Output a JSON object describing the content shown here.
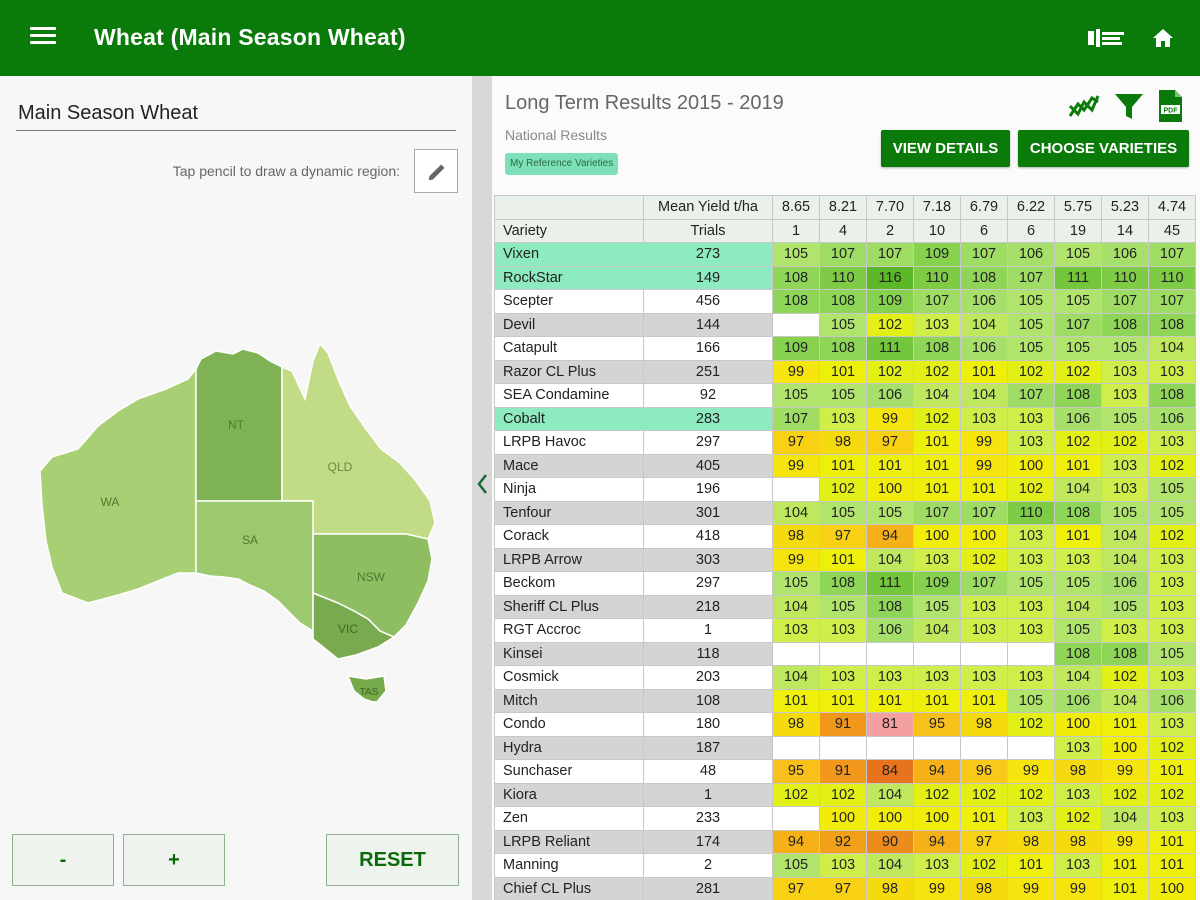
{
  "app_bar": {
    "title": "Wheat (Main Season Wheat)",
    "menu_icon": "menu-icon",
    "logo_icon": "nvt-logo-icon",
    "home_icon": "home-icon"
  },
  "left_panel": {
    "region_name": "Main Season Wheat",
    "hint": "Tap pencil to draw a dynamic region:",
    "pencil_icon": "pencil-icon",
    "map": {
      "states": [
        {
          "label": "WA",
          "color": "#a9cf75"
        },
        {
          "label": "NT",
          "color": "#7fb255"
        },
        {
          "label": "QLD",
          "color": "#c2db86"
        },
        {
          "label": "SA",
          "color": "#9cc86e"
        },
        {
          "label": "NSW",
          "color": "#8fbd61"
        },
        {
          "label": "VIC",
          "color": "#7aaa4f"
        },
        {
          "label": "TAS",
          "color": "#75a94a"
        }
      ]
    },
    "zoom_out_label": "-",
    "zoom_in_label": "+",
    "reset_label": "RESET"
  },
  "right_panel": {
    "title": "Long Term Results 2015 - 2019",
    "subtitle": "National Results",
    "chip": "My Reference Varieties",
    "icons": [
      "trend-chart-icon",
      "filter-icon",
      "pdf-icon"
    ],
    "view_details_label": "VIEW DETAILS",
    "choose_varieties_label": "CHOOSE VARIETIES",
    "table": {
      "header_mean_yield": "Mean Yield t/ha",
      "header_variety": "Variety",
      "header_trials": "Trials",
      "site_yields": [
        "8.65",
        "8.21",
        "7.70",
        "7.18",
        "6.79",
        "6.22",
        "5.75",
        "5.23",
        "4.74"
      ],
      "site_trials": [
        "1",
        "4",
        "2",
        "10",
        "6",
        "6",
        "19",
        "14",
        "45"
      ],
      "rows": [
        {
          "variety": "Vixen",
          "trials": "273",
          "values": [
            "105",
            "107",
            "107",
            "109",
            "107",
            "106",
            "105",
            "106",
            "107"
          ]
        },
        {
          "variety": "RockStar",
          "trials": "149",
          "values": [
            "108",
            "110",
            "116",
            "110",
            "108",
            "107",
            "111",
            "110",
            "110"
          ]
        },
        {
          "variety": "Scepter",
          "trials": "456",
          "values": [
            "108",
            "108",
            "109",
            "107",
            "106",
            "105",
            "105",
            "107",
            "107"
          ]
        },
        {
          "variety": "Devil",
          "trials": "144",
          "values": [
            "",
            "105",
            "102",
            "103",
            "104",
            "105",
            "107",
            "108",
            "108"
          ]
        },
        {
          "variety": "Catapult",
          "trials": "166",
          "values": [
            "109",
            "108",
            "111",
            "108",
            "106",
            "105",
            "105",
            "105",
            "104"
          ]
        },
        {
          "variety": "Razor CL Plus",
          "trials": "251",
          "values": [
            "99",
            "101",
            "102",
            "102",
            "101",
            "102",
            "102",
            "103",
            "103"
          ]
        },
        {
          "variety": "SEA Condamine",
          "trials": "92",
          "values": [
            "105",
            "105",
            "106",
            "104",
            "104",
            "107",
            "108",
            "103",
            "108"
          ]
        },
        {
          "variety": "Cobalt",
          "trials": "283",
          "values": [
            "107",
            "103",
            "99",
            "102",
            "103",
            "103",
            "106",
            "105",
            "106"
          ]
        },
        {
          "variety": "LRPB Havoc",
          "trials": "297",
          "values": [
            "97",
            "98",
            "97",
            "101",
            "99",
            "103",
            "102",
            "102",
            "103"
          ]
        },
        {
          "variety": "Mace",
          "trials": "405",
          "values": [
            "99",
            "101",
            "101",
            "101",
            "99",
            "100",
            "101",
            "103",
            "102"
          ]
        },
        {
          "variety": "Ninja",
          "trials": "196",
          "values": [
            "",
            "102",
            "100",
            "101",
            "101",
            "102",
            "104",
            "103",
            "105"
          ]
        },
        {
          "variety": "Tenfour",
          "trials": "301",
          "values": [
            "104",
            "105",
            "105",
            "107",
            "107",
            "110",
            "108",
            "105",
            "105"
          ]
        },
        {
          "variety": "Corack",
          "trials": "418",
          "values": [
            "98",
            "97",
            "94",
            "100",
            "100",
            "103",
            "101",
            "104",
            "102"
          ]
        },
        {
          "variety": "LRPB Arrow",
          "trials": "303",
          "values": [
            "99",
            "101",
            "104",
            "103",
            "102",
            "103",
            "103",
            "104",
            "103"
          ]
        },
        {
          "variety": "Beckom",
          "trials": "297",
          "values": [
            "105",
            "108",
            "111",
            "109",
            "107",
            "105",
            "105",
            "106",
            "103"
          ]
        },
        {
          "variety": "Sheriff CL Plus",
          "trials": "218",
          "values": [
            "104",
            "105",
            "108",
            "105",
            "103",
            "103",
            "104",
            "105",
            "103"
          ]
        },
        {
          "variety": "RGT Accroc",
          "trials": "1",
          "values": [
            "103",
            "103",
            "106",
            "104",
            "103",
            "103",
            "105",
            "103",
            "103"
          ]
        },
        {
          "variety": "Kinsei",
          "trials": "118",
          "values": [
            "",
            "",
            "",
            "",
            "",
            "",
            "108",
            "108",
            "105"
          ]
        },
        {
          "variety": "Cosmick",
          "trials": "203",
          "values": [
            "104",
            "103",
            "103",
            "103",
            "103",
            "103",
            "104",
            "102",
            "103"
          ]
        },
        {
          "variety": "Mitch",
          "trials": "108",
          "values": [
            "101",
            "101",
            "101",
            "101",
            "101",
            "105",
            "106",
            "104",
            "106"
          ]
        },
        {
          "variety": "Condo",
          "trials": "180",
          "values": [
            "98",
            "91",
            "81",
            "95",
            "98",
            "102",
            "100",
            "101",
            "103"
          ]
        },
        {
          "variety": "Hydra",
          "trials": "187",
          "values": [
            "",
            "",
            "",
            "",
            "",
            "",
            "103",
            "100",
            "102"
          ]
        },
        {
          "variety": "Sunchaser",
          "trials": "48",
          "values": [
            "95",
            "91",
            "84",
            "94",
            "96",
            "99",
            "98",
            "99",
            "101"
          ]
        },
        {
          "variety": "Kiora",
          "trials": "1",
          "values": [
            "102",
            "102",
            "104",
            "102",
            "102",
            "102",
            "103",
            "102",
            "102"
          ]
        },
        {
          "variety": "Zen",
          "trials": "233",
          "values": [
            "",
            "100",
            "100",
            "100",
            "101",
            "103",
            "102",
            "104",
            "103"
          ]
        },
        {
          "variety": "LRPB Reliant",
          "trials": "174",
          "values": [
            "94",
            "92",
            "90",
            "94",
            "97",
            "98",
            "98",
            "99",
            "101"
          ]
        },
        {
          "variety": "Manning",
          "trials": "2",
          "values": [
            "105",
            "103",
            "104",
            "103",
            "102",
            "101",
            "103",
            "101",
            "101"
          ]
        },
        {
          "variety": "Chief CL Plus",
          "trials": "281",
          "values": [
            "97",
            "97",
            "98",
            "99",
            "98",
            "99",
            "99",
            "101",
            "100"
          ]
        }
      ],
      "reference_varieties": [
        "Vixen",
        "RockStar",
        "Cobalt"
      ],
      "color_scale": {
        "81": "#f4a0a0",
        "84": "#e8731e",
        "90": "#ec8c1c",
        "91": "#f0971c",
        "92": "#f2a019",
        "94": "#f6b018",
        "95": "#f8c01a",
        "96": "#f8c81a",
        "97": "#f8d014",
        "98": "#f6da10",
        "99": "#f6e40e",
        "100": "#f2ec0a",
        "101": "#eef00c",
        "102": "#e2f018",
        "103": "#cfee4a",
        "104": "#bfe85e",
        "105": "#b0e46c",
        "106": "#a6e06a",
        "107": "#9edc64",
        "108": "#8fd658",
        "109": "#86d24e",
        "110": "#7ecc46",
        "111": "#74c63c",
        "116": "#5cb828"
      }
    }
  }
}
